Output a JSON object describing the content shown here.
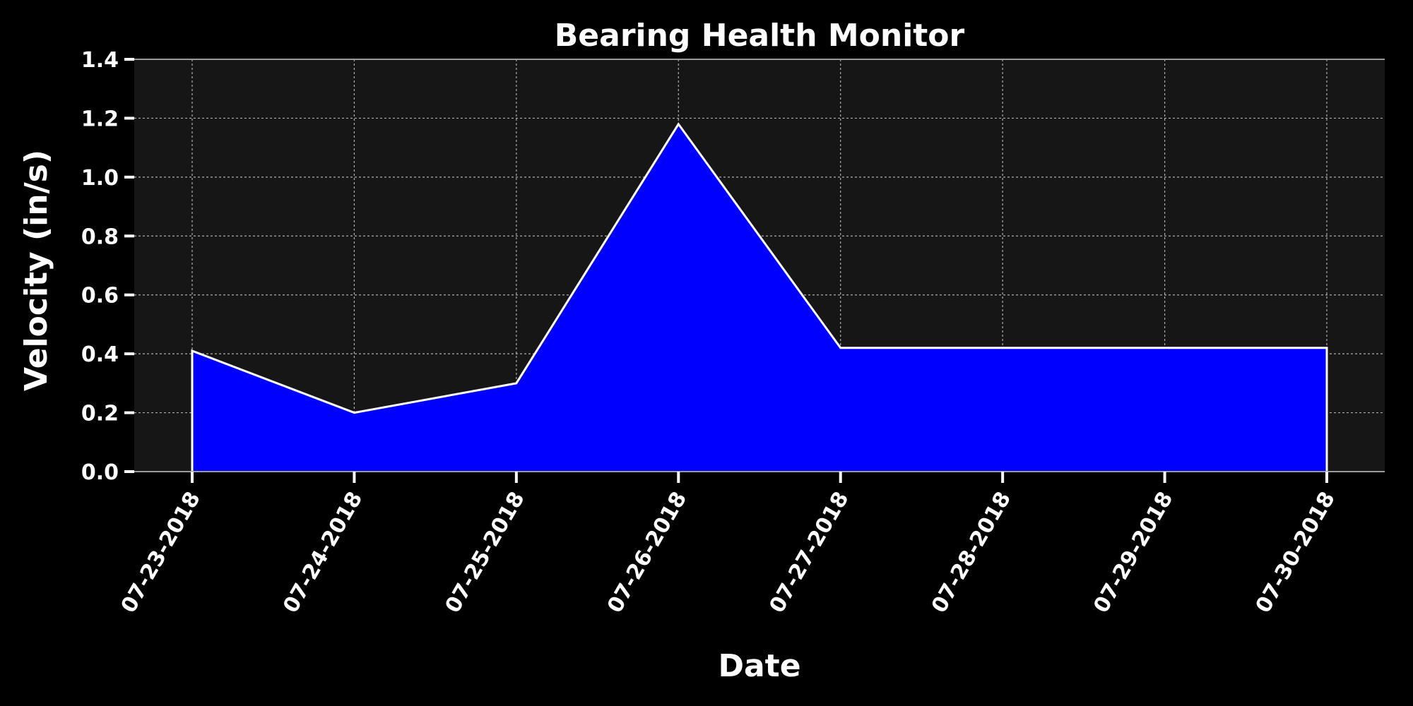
{
  "chart_data": {
    "type": "area",
    "title": "Bearing Health Monitor",
    "xlabel": "Date",
    "ylabel": "Velocity (in/s)",
    "categories": [
      "07-23-2018",
      "07-24-2018",
      "07-25-2018",
      "07-26-2018",
      "07-27-2018",
      "07-28-2018",
      "07-29-2018",
      "07-30-2018"
    ],
    "values": [
      0.41,
      0.2,
      0.3,
      1.18,
      0.42,
      0.42,
      0.42,
      0.42
    ],
    "ylim": [
      0,
      1.4
    ],
    "yticks": [
      "0.0",
      "0.2",
      "0.4",
      "0.6",
      "0.8",
      "1.0",
      "1.2",
      "1.4"
    ],
    "grid": true,
    "colors": {
      "background": "#000000",
      "plot_background": "#161616",
      "fill": "#0000ff",
      "line": "#ffffff",
      "grid": "#c8c8c8",
      "text": "#ffffff"
    }
  }
}
